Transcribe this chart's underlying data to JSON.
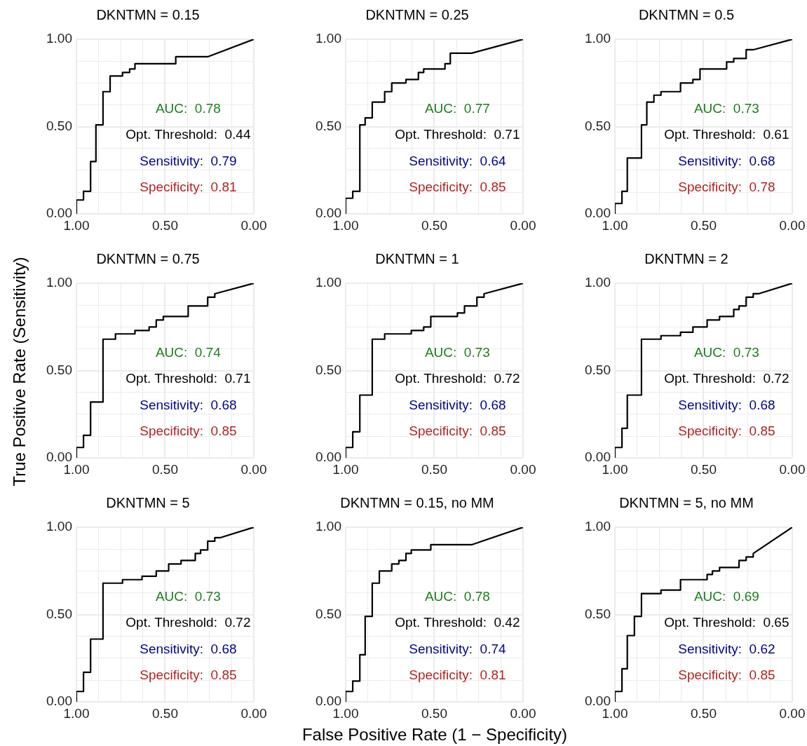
{
  "chart_data": [
    {
      "type": "line",
      "title": "DKNTMN = 0.15",
      "xlim": [
        1,
        0
      ],
      "ylim": [
        0,
        1
      ],
      "xticks": [
        {
          "value": 1,
          "label": "1.00"
        },
        {
          "value": 0.875,
          "label": null
        },
        {
          "value": 0.75,
          "label": null
        },
        {
          "value": 0.625,
          "label": null
        },
        {
          "value": 0.5,
          "label": "0.50"
        },
        {
          "value": 0.375,
          "label": null
        },
        {
          "value": 0.25,
          "label": null
        },
        {
          "value": 0.125,
          "label": null
        },
        {
          "value": 0,
          "label": "0.00"
        }
      ],
      "yticks": [
        {
          "value": 0,
          "label": "0.00"
        },
        {
          "value": 0.125,
          "label": null
        },
        {
          "value": 0.25,
          "label": null
        },
        {
          "value": 0.375,
          "label": null
        },
        {
          "value": 0.5,
          "label": "0.50"
        },
        {
          "value": 0.625,
          "label": null
        },
        {
          "value": 0.75,
          "label": null
        },
        {
          "value": 0.875,
          "label": null
        },
        {
          "value": 1,
          "label": "1.00"
        }
      ],
      "grid": true,
      "marker": "none",
      "line_style": "solid",
      "annotations": [
        "AUC:  0.78",
        "Opt. Threshold:  0.44",
        "Sensitivity:  0.79",
        "Specificity:  0.81"
      ],
      "series": [
        {
          "color": "#000000",
          "x": [
            1,
            1,
            0.96,
            0.96,
            0.92,
            0.92,
            0.89,
            0.89,
            0.85,
            0.85,
            0.81,
            0.81,
            0.74,
            0.74,
            0.7,
            0.7,
            0.67,
            0.67,
            0.44,
            0.44,
            0.26,
            0
          ],
          "values": [
            0,
            0.08,
            0.08,
            0.13,
            0.13,
            0.3,
            0.3,
            0.51,
            0.51,
            0.7,
            0.7,
            0.79,
            0.79,
            0.81,
            0.81,
            0.83,
            0.83,
            0.86,
            0.86,
            0.9,
            0.9,
            1
          ]
        }
      ]
    },
    {
      "type": "line",
      "title": "DKNTMN = 0.25",
      "xlim": [
        1,
        0
      ],
      "ylim": [
        0,
        1
      ],
      "xticks": [
        {
          "value": 1,
          "label": "1.00"
        },
        {
          "value": 0.875,
          "label": null
        },
        {
          "value": 0.75,
          "label": null
        },
        {
          "value": 0.625,
          "label": null
        },
        {
          "value": 0.5,
          "label": "0.50"
        },
        {
          "value": 0.375,
          "label": null
        },
        {
          "value": 0.25,
          "label": null
        },
        {
          "value": 0.125,
          "label": null
        },
        {
          "value": 0,
          "label": "0.00"
        }
      ],
      "yticks": [
        {
          "value": 0,
          "label": "0.00"
        },
        {
          "value": 0.125,
          "label": null
        },
        {
          "value": 0.25,
          "label": null
        },
        {
          "value": 0.375,
          "label": null
        },
        {
          "value": 0.5,
          "label": "0.50"
        },
        {
          "value": 0.625,
          "label": null
        },
        {
          "value": 0.75,
          "label": null
        },
        {
          "value": 0.875,
          "label": null
        },
        {
          "value": 1,
          "label": "1.00"
        }
      ],
      "grid": true,
      "marker": "none",
      "line_style": "solid",
      "annotations": [
        "AUC:  0.77",
        "Opt. Threshold:  0.71",
        "Sensitivity:  0.64",
        "Specificity:  0.85"
      ],
      "series": [
        {
          "color": "#000000",
          "x": [
            1,
            1,
            0.96,
            0.96,
            0.92,
            0.92,
            0.89,
            0.89,
            0.85,
            0.85,
            0.78,
            0.78,
            0.74,
            0.74,
            0.66,
            0.66,
            0.59,
            0.59,
            0.56,
            0.56,
            0.44,
            0.44,
            0.41,
            0.41,
            0.29,
            0
          ],
          "values": [
            0,
            0.09,
            0.09,
            0.13,
            0.13,
            0.51,
            0.51,
            0.55,
            0.55,
            0.64,
            0.64,
            0.7,
            0.7,
            0.75,
            0.75,
            0.77,
            0.77,
            0.81,
            0.81,
            0.83,
            0.83,
            0.86,
            0.86,
            0.92,
            0.92,
            1
          ]
        }
      ]
    },
    {
      "type": "line",
      "title": "DKNTMN = 0.5",
      "xlim": [
        1,
        0
      ],
      "ylim": [
        0,
        1
      ],
      "xticks": [
        {
          "value": 1,
          "label": "1.00"
        },
        {
          "value": 0.875,
          "label": null
        },
        {
          "value": 0.75,
          "label": null
        },
        {
          "value": 0.625,
          "label": null
        },
        {
          "value": 0.5,
          "label": "0.50"
        },
        {
          "value": 0.375,
          "label": null
        },
        {
          "value": 0.25,
          "label": null
        },
        {
          "value": 0.125,
          "label": null
        },
        {
          "value": 0,
          "label": "0.00"
        }
      ],
      "yticks": [
        {
          "value": 0,
          "label": "0.00"
        },
        {
          "value": 0.125,
          "label": null
        },
        {
          "value": 0.25,
          "label": null
        },
        {
          "value": 0.375,
          "label": null
        },
        {
          "value": 0.5,
          "label": "0.50"
        },
        {
          "value": 0.625,
          "label": null
        },
        {
          "value": 0.75,
          "label": null
        },
        {
          "value": 0.875,
          "label": null
        },
        {
          "value": 1,
          "label": "1.00"
        }
      ],
      "grid": true,
      "marker": "none",
      "line_style": "solid",
      "annotations": [
        "AUC:  0.73",
        "Opt. Threshold:  0.61",
        "Sensitivity:  0.68",
        "Specificity:  0.78"
      ],
      "series": [
        {
          "color": "#000000",
          "x": [
            1,
            1,
            0.96,
            0.96,
            0.93,
            0.93,
            0.85,
            0.85,
            0.82,
            0.82,
            0.78,
            0.78,
            0.74,
            0.74,
            0.63,
            0.63,
            0.56,
            0.56,
            0.52,
            0.52,
            0.37,
            0.37,
            0.33,
            0.33,
            0.26,
            0.26,
            0.22,
            0
          ],
          "values": [
            0,
            0.06,
            0.06,
            0.13,
            0.13,
            0.32,
            0.32,
            0.51,
            0.51,
            0.64,
            0.64,
            0.68,
            0.68,
            0.7,
            0.7,
            0.75,
            0.75,
            0.77,
            0.77,
            0.83,
            0.83,
            0.87,
            0.87,
            0.89,
            0.89,
            0.94,
            0.94,
            1
          ]
        }
      ]
    },
    {
      "type": "line",
      "title": "DKNTMN = 0.75",
      "ylabel": "True Positive Rate (Sensitivity)",
      "xlim": [
        1,
        0
      ],
      "ylim": [
        0,
        1
      ],
      "xticks": [
        {
          "value": 1,
          "label": "1.00"
        },
        {
          "value": 0.875,
          "label": null
        },
        {
          "value": 0.75,
          "label": null
        },
        {
          "value": 0.625,
          "label": null
        },
        {
          "value": 0.5,
          "label": "0.50"
        },
        {
          "value": 0.375,
          "label": null
        },
        {
          "value": 0.25,
          "label": null
        },
        {
          "value": 0.125,
          "label": null
        },
        {
          "value": 0,
          "label": "0.00"
        }
      ],
      "yticks": [
        {
          "value": 0,
          "label": "0.00"
        },
        {
          "value": 0.125,
          "label": null
        },
        {
          "value": 0.25,
          "label": null
        },
        {
          "value": 0.375,
          "label": null
        },
        {
          "value": 0.5,
          "label": "0.50"
        },
        {
          "value": 0.625,
          "label": null
        },
        {
          "value": 0.75,
          "label": null
        },
        {
          "value": 0.875,
          "label": null
        },
        {
          "value": 1,
          "label": "1.00"
        }
      ],
      "grid": true,
      "marker": "none",
      "line_style": "solid",
      "annotations": [
        "AUC:  0.74",
        "Opt. Threshold:  0.71",
        "Sensitivity:  0.68",
        "Specificity:  0.85"
      ],
      "series": [
        {
          "color": "#000000",
          "x": [
            1,
            1,
            0.96,
            0.96,
            0.92,
            0.92,
            0.85,
            0.85,
            0.78,
            0.78,
            0.67,
            0.67,
            0.59,
            0.59,
            0.55,
            0.55,
            0.51,
            0.51,
            0.37,
            0.37,
            0.26,
            0.26,
            0.22,
            0.22,
            0
          ],
          "values": [
            0,
            0.06,
            0.06,
            0.13,
            0.13,
            0.32,
            0.32,
            0.68,
            0.68,
            0.71,
            0.71,
            0.73,
            0.73,
            0.75,
            0.75,
            0.79,
            0.79,
            0.81,
            0.81,
            0.87,
            0.87,
            0.92,
            0.92,
            0.94,
            1
          ]
        }
      ]
    },
    {
      "type": "line",
      "title": "DKNTMN = 1",
      "xlim": [
        1,
        0
      ],
      "ylim": [
        0,
        1
      ],
      "xticks": [
        {
          "value": 1,
          "label": "1.00"
        },
        {
          "value": 0.875,
          "label": null
        },
        {
          "value": 0.75,
          "label": null
        },
        {
          "value": 0.625,
          "label": null
        },
        {
          "value": 0.5,
          "label": "0.50"
        },
        {
          "value": 0.375,
          "label": null
        },
        {
          "value": 0.25,
          "label": null
        },
        {
          "value": 0.125,
          "label": null
        },
        {
          "value": 0,
          "label": "0.00"
        }
      ],
      "yticks": [
        {
          "value": 0,
          "label": "0.00"
        },
        {
          "value": 0.125,
          "label": null
        },
        {
          "value": 0.25,
          "label": null
        },
        {
          "value": 0.375,
          "label": null
        },
        {
          "value": 0.5,
          "label": "0.50"
        },
        {
          "value": 0.625,
          "label": null
        },
        {
          "value": 0.75,
          "label": null
        },
        {
          "value": 0.875,
          "label": null
        },
        {
          "value": 1,
          "label": "1.00"
        }
      ],
      "grid": true,
      "marker": "none",
      "line_style": "solid",
      "annotations": [
        "AUC:  0.73",
        "Opt. Threshold:  0.72",
        "Sensitivity:  0.68",
        "Specificity:  0.85"
      ],
      "series": [
        {
          "color": "#000000",
          "x": [
            1,
            1,
            0.96,
            0.96,
            0.92,
            0.92,
            0.85,
            0.85,
            0.78,
            0.78,
            0.63,
            0.63,
            0.56,
            0.56,
            0.52,
            0.52,
            0.37,
            0.37,
            0.33,
            0.33,
            0.26,
            0.26,
            0.22,
            0.22,
            0
          ],
          "values": [
            0,
            0.06,
            0.06,
            0.15,
            0.15,
            0.36,
            0.36,
            0.68,
            0.68,
            0.71,
            0.71,
            0.73,
            0.73,
            0.75,
            0.75,
            0.81,
            0.81,
            0.83,
            0.83,
            0.87,
            0.87,
            0.92,
            0.92,
            0.94,
            1
          ]
        }
      ]
    },
    {
      "type": "line",
      "title": "DKNTMN = 2",
      "xlim": [
        1,
        0
      ],
      "ylim": [
        0,
        1
      ],
      "xticks": [
        {
          "value": 1,
          "label": "1.00"
        },
        {
          "value": 0.875,
          "label": null
        },
        {
          "value": 0.75,
          "label": null
        },
        {
          "value": 0.625,
          "label": null
        },
        {
          "value": 0.5,
          "label": "0.50"
        },
        {
          "value": 0.375,
          "label": null
        },
        {
          "value": 0.25,
          "label": null
        },
        {
          "value": 0.125,
          "label": null
        },
        {
          "value": 0,
          "label": "0.00"
        }
      ],
      "yticks": [
        {
          "value": 0,
          "label": "0.00"
        },
        {
          "value": 0.125,
          "label": null
        },
        {
          "value": 0.25,
          "label": null
        },
        {
          "value": 0.375,
          "label": null
        },
        {
          "value": 0.5,
          "label": "0.50"
        },
        {
          "value": 0.625,
          "label": null
        },
        {
          "value": 0.75,
          "label": null
        },
        {
          "value": 0.875,
          "label": null
        },
        {
          "value": 1,
          "label": "1.00"
        }
      ],
      "grid": true,
      "marker": "none",
      "line_style": "solid",
      "annotations": [
        "AUC:  0.73",
        "Opt. Threshold:  0.72",
        "Sensitivity:  0.68",
        "Specificity:  0.85"
      ],
      "series": [
        {
          "color": "#000000",
          "x": [
            1,
            1,
            0.96,
            0.96,
            0.93,
            0.93,
            0.85,
            0.85,
            0.74,
            0.74,
            0.63,
            0.63,
            0.56,
            0.56,
            0.48,
            0.48,
            0.41,
            0.41,
            0.33,
            0.33,
            0.3,
            0.3,
            0.26,
            0.26,
            0.22,
            0.22,
            0.19,
            0
          ],
          "values": [
            0,
            0.06,
            0.06,
            0.17,
            0.17,
            0.36,
            0.36,
            0.68,
            0.68,
            0.7,
            0.7,
            0.72,
            0.72,
            0.75,
            0.75,
            0.79,
            0.79,
            0.81,
            0.81,
            0.85,
            0.85,
            0.87,
            0.87,
            0.92,
            0.92,
            0.94,
            0.94,
            1
          ]
        }
      ]
    },
    {
      "type": "line",
      "title": "DKNTMN = 5",
      "xlim": [
        1,
        0
      ],
      "ylim": [
        0,
        1
      ],
      "xticks": [
        {
          "value": 1,
          "label": "1.00"
        },
        {
          "value": 0.875,
          "label": null
        },
        {
          "value": 0.75,
          "label": null
        },
        {
          "value": 0.625,
          "label": null
        },
        {
          "value": 0.5,
          "label": "0.50"
        },
        {
          "value": 0.375,
          "label": null
        },
        {
          "value": 0.25,
          "label": null
        },
        {
          "value": 0.125,
          "label": null
        },
        {
          "value": 0,
          "label": "0.00"
        }
      ],
      "yticks": [
        {
          "value": 0,
          "label": "0.00"
        },
        {
          "value": 0.125,
          "label": null
        },
        {
          "value": 0.25,
          "label": null
        },
        {
          "value": 0.375,
          "label": null
        },
        {
          "value": 0.5,
          "label": "0.50"
        },
        {
          "value": 0.625,
          "label": null
        },
        {
          "value": 0.75,
          "label": null
        },
        {
          "value": 0.875,
          "label": null
        },
        {
          "value": 1,
          "label": "1.00"
        }
      ],
      "grid": true,
      "marker": "none",
      "line_style": "solid",
      "annotations": [
        "AUC:  0.73",
        "Opt. Threshold:  0.72",
        "Sensitivity:  0.68",
        "Specificity:  0.85"
      ],
      "series": [
        {
          "color": "#000000",
          "x": [
            1,
            1,
            0.96,
            0.96,
            0.92,
            0.92,
            0.85,
            0.85,
            0.74,
            0.74,
            0.63,
            0.63,
            0.55,
            0.55,
            0.48,
            0.48,
            0.41,
            0.41,
            0.33,
            0.33,
            0.3,
            0.3,
            0.26,
            0.26,
            0.22,
            0.22,
            0.19,
            0
          ],
          "values": [
            0,
            0.06,
            0.06,
            0.17,
            0.17,
            0.36,
            0.36,
            0.68,
            0.68,
            0.7,
            0.7,
            0.72,
            0.72,
            0.75,
            0.75,
            0.79,
            0.79,
            0.81,
            0.81,
            0.85,
            0.85,
            0.87,
            0.87,
            0.92,
            0.92,
            0.94,
            0.94,
            1
          ]
        }
      ]
    },
    {
      "type": "line",
      "title": "DKNTMN = 0.15, no MM",
      "xlabel": "False Positive Rate (1 − Specificity)",
      "xlim": [
        1,
        0
      ],
      "ylim": [
        0,
        1
      ],
      "xticks": [
        {
          "value": 1,
          "label": "1.00"
        },
        {
          "value": 0.875,
          "label": null
        },
        {
          "value": 0.75,
          "label": null
        },
        {
          "value": 0.625,
          "label": null
        },
        {
          "value": 0.5,
          "label": "0.50"
        },
        {
          "value": 0.375,
          "label": null
        },
        {
          "value": 0.25,
          "label": null
        },
        {
          "value": 0.125,
          "label": null
        },
        {
          "value": 0,
          "label": "0.00"
        }
      ],
      "yticks": [
        {
          "value": 0,
          "label": "0.00"
        },
        {
          "value": 0.125,
          "label": null
        },
        {
          "value": 0.25,
          "label": null
        },
        {
          "value": 0.375,
          "label": null
        },
        {
          "value": 0.5,
          "label": "0.50"
        },
        {
          "value": 0.625,
          "label": null
        },
        {
          "value": 0.75,
          "label": null
        },
        {
          "value": 0.875,
          "label": null
        },
        {
          "value": 1,
          "label": "1.00"
        }
      ],
      "grid": true,
      "marker": "none",
      "line_style": "solid",
      "annotations": [
        "AUC:  0.78",
        "Opt. Threshold:  0.42",
        "Sensitivity:  0.74",
        "Specificity:  0.81"
      ],
      "series": [
        {
          "color": "#000000",
          "x": [
            1,
            1,
            0.96,
            0.96,
            0.92,
            0.92,
            0.89,
            0.89,
            0.85,
            0.85,
            0.81,
            0.81,
            0.74,
            0.74,
            0.7,
            0.7,
            0.66,
            0.66,
            0.63,
            0.63,
            0.52,
            0.52,
            0.29,
            0
          ],
          "values": [
            0,
            0.06,
            0.06,
            0.12,
            0.12,
            0.27,
            0.27,
            0.49,
            0.49,
            0.68,
            0.68,
            0.75,
            0.75,
            0.79,
            0.79,
            0.81,
            0.81,
            0.85,
            0.85,
            0.87,
            0.87,
            0.9,
            0.9,
            1
          ]
        }
      ]
    },
    {
      "type": "line",
      "title": "DKNTMN = 5, no MM",
      "xlim": [
        1,
        0
      ],
      "ylim": [
        0,
        1
      ],
      "xticks": [
        {
          "value": 1,
          "label": "1.00"
        },
        {
          "value": 0.875,
          "label": null
        },
        {
          "value": 0.75,
          "label": null
        },
        {
          "value": 0.625,
          "label": null
        },
        {
          "value": 0.5,
          "label": "0.50"
        },
        {
          "value": 0.375,
          "label": null
        },
        {
          "value": 0.25,
          "label": null
        },
        {
          "value": 0.125,
          "label": null
        },
        {
          "value": 0,
          "label": "0.00"
        }
      ],
      "yticks": [
        {
          "value": 0,
          "label": "0.00"
        },
        {
          "value": 0.125,
          "label": null
        },
        {
          "value": 0.25,
          "label": null
        },
        {
          "value": 0.375,
          "label": null
        },
        {
          "value": 0.5,
          "label": "0.50"
        },
        {
          "value": 0.625,
          "label": null
        },
        {
          "value": 0.75,
          "label": null
        },
        {
          "value": 0.875,
          "label": null
        },
        {
          "value": 1,
          "label": "1.00"
        }
      ],
      "grid": true,
      "marker": "none",
      "line_style": "solid",
      "annotations": [
        "AUC:  0.69",
        "Opt. Threshold:  0.65",
        "Sensitivity:  0.62",
        "Specificity:  0.85"
      ],
      "series": [
        {
          "color": "#000000",
          "x": [
            1,
            1,
            0.96,
            0.96,
            0.93,
            0.93,
            0.89,
            0.89,
            0.85,
            0.85,
            0.74,
            0.74,
            0.63,
            0.63,
            0.48,
            0.48,
            0.45,
            0.45,
            0.41,
            0.41,
            0.3,
            0.3,
            0.26,
            0.26,
            0.22,
            0.22,
            0
          ],
          "values": [
            0,
            0.06,
            0.06,
            0.19,
            0.19,
            0.38,
            0.38,
            0.49,
            0.49,
            0.62,
            0.62,
            0.64,
            0.64,
            0.7,
            0.7,
            0.73,
            0.73,
            0.75,
            0.75,
            0.77,
            0.77,
            0.81,
            0.81,
            0.83,
            0.83,
            0.85,
            1
          ]
        }
      ]
    }
  ]
}
